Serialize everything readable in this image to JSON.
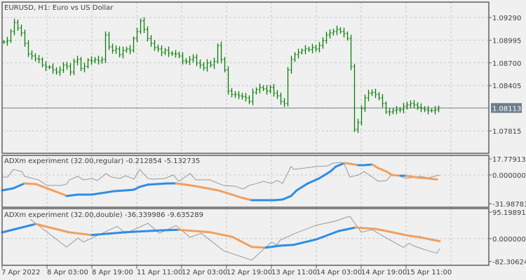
{
  "window": {
    "symbol_title": "EURUSD, H1:  Euro vs US Dollar"
  },
  "colors": {
    "background": "#f0f0f0",
    "bars": "#0a800a",
    "grid": "#c8c8c8",
    "frame": "#606060",
    "price_line": "#7b8793",
    "price_badge": "#6e7d8c",
    "rising": "#2e8de6",
    "falling": "#f0a060",
    "signal": "#999999"
  },
  "chart_data": [
    {
      "type": "line",
      "title": "EURUSD, H1:  Euro vs US Dollar",
      "style": "ohlc-bars",
      "current_price": "1.08113",
      "y_ticks": [
        "1.09290",
        "1.08995",
        "1.08700",
        "1.08405",
        "1.07815"
      ],
      "grid": true,
      "closes": [
        1.08972,
        1.0899,
        1.09108,
        1.09226,
        1.09154,
        1.0909,
        1.08953,
        1.08817,
        1.0879,
        1.08753,
        1.08744,
        1.08671,
        1.08644,
        1.08644,
        1.08608,
        1.0858,
        1.08608,
        1.08671,
        1.08653,
        1.0858,
        1.08717,
        1.08744,
        1.08626,
        1.08653,
        1.08735,
        1.08726,
        1.08744,
        1.08726,
        1.08744,
        1.09063,
        1.08908,
        1.08862,
        1.08881,
        1.08808,
        1.08862,
        1.08881,
        1.08862,
        1.09017,
        1.09108,
        1.09245,
        1.09135,
        1.09017,
        1.08953,
        1.08899,
        1.08881,
        1.08835,
        1.08862,
        1.08826,
        1.08817,
        1.08817,
        1.0879,
        1.08726,
        1.08717,
        1.08744,
        1.08771,
        1.08699,
        1.08671,
        1.08635,
        1.08699,
        1.08671,
        1.08717,
        1.08926,
        1.08744,
        1.08608,
        1.08335,
        1.08289,
        1.08289,
        1.08271,
        1.08262,
        1.08244,
        1.08198,
        1.08316,
        1.08353,
        1.0838,
        1.08362,
        1.08335,
        1.0838,
        1.08307,
        1.08271,
        1.08198,
        1.08171,
        1.08608,
        1.08744,
        1.08808,
        1.08835,
        1.08862,
        1.08881,
        1.08873,
        1.08899,
        1.08881,
        1.08926,
        1.0899,
        1.09063,
        1.0909,
        1.09108,
        1.09135,
        1.09108,
        1.09081,
        1.09017,
        1.08653,
        1.07834,
        1.07925,
        1.08107,
        1.08244,
        1.08307,
        1.08316,
        1.08289,
        1.08244,
        1.08171,
        1.08062,
        1.08062,
        1.0808,
        1.08089,
        1.08089,
        1.08135,
        1.08153,
        1.08171,
        1.08153,
        1.08125,
        1.08107,
        1.08089,
        1.0808,
        1.0808,
        1.08089,
        1.08113
      ]
    },
    {
      "type": "line",
      "title": "ADXm experiment (32.00,regular) -0.212854 -5.132735",
      "y_ticks": [
        "17.779135",
        "0.000000",
        "-31.987830"
      ],
      "ylim": [
        -31.98783,
        17.779135
      ],
      "grid": true,
      "series": [
        {
          "role": "thin",
          "points": [
            [
              0,
              -2.4
            ],
            [
              2,
              -2.4
            ],
            [
              4,
              6.1
            ],
            [
              7,
              3.8
            ],
            [
              8,
              -1.6
            ],
            [
              11,
              -4.0
            ],
            [
              13,
              -5.5
            ],
            [
              16,
              -11.7
            ],
            [
              18,
              -11.7
            ],
            [
              21,
              -11.7
            ],
            [
              23,
              -10.2
            ],
            [
              24,
              -5.5
            ],
            [
              27,
              -1.6
            ],
            [
              29,
              -5.5
            ],
            [
              32,
              -4.0
            ],
            [
              34,
              -6.3
            ],
            [
              37,
              1.5
            ],
            [
              39,
              -2.4
            ],
            [
              42,
              -4.0
            ],
            [
              44,
              -0.9
            ],
            [
              47,
              -4.7
            ],
            [
              49,
              6.1
            ],
            [
              52,
              -4.0
            ],
            [
              54,
              -4.7
            ],
            [
              58,
              -4.0
            ],
            [
              61,
              -0.1
            ],
            [
              63,
              -7.1
            ],
            [
              67,
              1.5
            ],
            [
              69,
              -5.5
            ],
            [
              72,
              -5.5
            ],
            [
              74,
              -5.5
            ],
            [
              77,
              -9.4
            ],
            [
              79,
              -11.7
            ],
            [
              83,
              -12.5
            ],
            [
              86,
              -15.6
            ],
            [
              88,
              -11.7
            ],
            [
              91,
              -9.4
            ],
            [
              93,
              -7.1
            ],
            [
              96,
              -9.4
            ],
            [
              98,
              -6.3
            ],
            [
              100,
              -9.4
            ],
            [
              103,
              9.3
            ],
            [
              104,
              6.1
            ],
            [
              108,
              7.7
            ],
            [
              112,
              9.3
            ],
            [
              116,
              10.0
            ],
            [
              118,
              13.1
            ],
            [
              121,
              13.9
            ],
            [
              122,
              11.6
            ],
            [
              124,
              -2.4
            ],
            [
              127,
              -0.1
            ],
            [
              129,
              3.8
            ],
            [
              132,
              -2.4
            ],
            [
              134,
              -7.1
            ],
            [
              137,
              -6.3
            ],
            [
              139,
              0.7
            ],
            [
              142,
              -1.6
            ],
            [
              144,
              -4.0
            ],
            [
              147,
              -2.4
            ],
            [
              149,
              -1.6
            ],
            [
              152,
              -3.2
            ],
            [
              154,
              -1.6
            ],
            [
              156,
              -0.2
            ]
          ]
        },
        {
          "role": "thick",
          "points": [
            [
              0,
              -17.2
            ],
            [
              4,
              -14.9
            ],
            [
              8,
              -9.4
            ],
            [
              12,
              -10.2
            ],
            [
              14,
              -12.5
            ],
            [
              18,
              -17.2
            ],
            [
              22,
              -21.9
            ],
            [
              23,
              -23.4
            ],
            [
              27,
              -21.9
            ],
            [
              32,
              -21.9
            ],
            [
              37,
              -19.5
            ],
            [
              40,
              -18.0
            ],
            [
              44,
              -17.2
            ],
            [
              47,
              -16.4
            ],
            [
              49,
              -13.3
            ],
            [
              52,
              -10.8
            ],
            [
              55,
              -10.2
            ],
            [
              59,
              -9.4
            ],
            [
              62,
              -9.4
            ],
            [
              64,
              -10.2
            ],
            [
              67,
              -11.6
            ],
            [
              69,
              -12.5
            ],
            [
              73,
              -14.9
            ],
            [
              77,
              -17.2
            ],
            [
              82,
              -21.9
            ],
            [
              85,
              -25.0
            ],
            [
              89,
              -28.1
            ],
            [
              93,
              -28.1
            ],
            [
              97,
              -28.1
            ],
            [
              100,
              -27.3
            ],
            [
              103,
              -23.4
            ],
            [
              105,
              -17.2
            ],
            [
              109,
              -9.4
            ],
            [
              113,
              -3.9
            ],
            [
              117,
              3.8
            ],
            [
              119,
              9.3
            ],
            [
              122,
              13.1
            ],
            [
              124,
              12.4
            ],
            [
              127,
              10.8
            ],
            [
              129,
              10.8
            ],
            [
              132,
              11.6
            ],
            [
              134,
              7.7
            ],
            [
              137,
              3.8
            ],
            [
              139,
              -0.1
            ],
            [
              142,
              -0.9
            ],
            [
              144,
              -0.9
            ],
            [
              147,
              -2.4
            ],
            [
              149,
              -3.2
            ],
            [
              152,
              -3.9
            ],
            [
              155,
              -5.1
            ]
          ]
        }
      ]
    },
    {
      "type": "line",
      "title": "ADXm experiment (32.00,double) -36.339986 -9.635289",
      "y_ticks": [
        "95.198915",
        "0.000000",
        "-82.306242"
      ],
      "ylim": [
        -82.306242,
        95.198915
      ],
      "grid": true,
      "series": [
        {
          "role": "thin",
          "points": [
            [
              10,
              70.0
            ],
            [
              23,
              -30.7
            ],
            [
              27,
              2.0
            ],
            [
              29,
              -12.3
            ],
            [
              33,
              6.3
            ],
            [
              41,
              44.1
            ],
            [
              44,
              18.9
            ],
            [
              52,
              54.9
            ],
            [
              56,
              18.9
            ],
            [
              62,
              46.6
            ],
            [
              67,
              4.5
            ],
            [
              71,
              18.9
            ],
            [
              79,
              -44.1
            ],
            [
              89,
              -77.8
            ],
            [
              96,
              -12.3
            ],
            [
              98,
              -23.2
            ],
            [
              99,
              -6.3
            ],
            [
              104,
              17.0
            ],
            [
              112,
              48.1
            ],
            [
              119,
              63.2
            ],
            [
              123,
              77.6
            ],
            [
              124,
              79.3
            ],
            [
              128,
              22.9
            ],
            [
              132,
              31.5
            ],
            [
              137,
              2.0
            ],
            [
              143,
              -31.5
            ],
            [
              145,
              -17.4
            ],
            [
              147,
              -27.5
            ],
            [
              152,
              -44.1
            ],
            [
              155,
              -52.6
            ],
            [
              156,
              -36.3
            ]
          ]
        },
        {
          "role": "thick",
          "points": [
            [
              0,
              22.2
            ],
            [
              12,
              52.4
            ],
            [
              24,
              22.2
            ],
            [
              32,
              12.8
            ],
            [
              44,
              22.9
            ],
            [
              57,
              29.7
            ],
            [
              63,
              31.5
            ],
            [
              74,
              22.9
            ],
            [
              82,
              6.3
            ],
            [
              89,
              -30.0
            ],
            [
              94,
              -32.5
            ],
            [
              99,
              -25.7
            ],
            [
              104,
              -22.4
            ],
            [
              112,
              -3.0
            ],
            [
              120,
              27.2
            ],
            [
              126,
              39.8
            ],
            [
              133,
              34.8
            ],
            [
              137,
              27.2
            ],
            [
              144,
              12.1
            ],
            [
              149,
              4.5
            ],
            [
              156,
              -9.6
            ]
          ]
        }
      ]
    }
  ],
  "time_axis": {
    "labels": [
      "7 Apr 2022",
      "8 Apr 03:00",
      "8 Apr 19:00",
      "11 Apr 11:00",
      "12 Apr 03:00",
      "12 Apr 19:00",
      "13 Apr 11:00",
      "14 Apr 03:00",
      "14 Apr 19:00",
      "15 Apr 11:00"
    ]
  }
}
